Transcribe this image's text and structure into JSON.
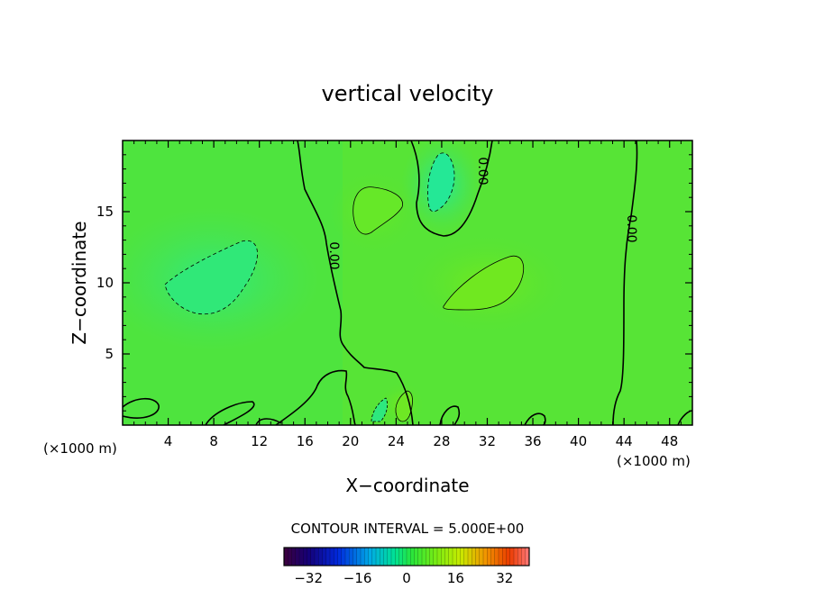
{
  "chart_data": {
    "type": "heatmap",
    "title": "vertical velocity",
    "xlabel": "X−coordinate",
    "ylabel": "Z−coordinate",
    "x_unit_left": "(×1000 m)",
    "x_unit_right": "(×1000 m)",
    "xlim": [
      0,
      50
    ],
    "ylim": [
      0,
      20
    ],
    "x_ticks": [
      4,
      8,
      12,
      16,
      20,
      24,
      28,
      32,
      36,
      40,
      44,
      48
    ],
    "y_ticks": [
      5,
      10,
      15
    ],
    "x_tick_labels": [
      "4",
      "8",
      "12",
      "16",
      "20",
      "24",
      "28",
      "32",
      "36",
      "40",
      "44",
      "48"
    ],
    "y_tick_labels": [
      "5",
      "10",
      "15"
    ],
    "contour_labels": [
      "0.00",
      "0.00",
      "0.00"
    ],
    "contour_interval_text": "CONTOUR INTERVAL = 5.000E+00",
    "colorbar": {
      "range": [
        -40,
        40
      ],
      "tick_values": [
        -32,
        -16,
        0,
        16,
        32
      ],
      "tick_labels": [
        "−32",
        "−16",
        "0",
        "16",
        "32"
      ]
    },
    "colors": {
      "field_base": "#52e23a",
      "negative_region": "#2ee87a",
      "positive_region": "#6ee820",
      "contour_line": "#000000"
    }
  }
}
